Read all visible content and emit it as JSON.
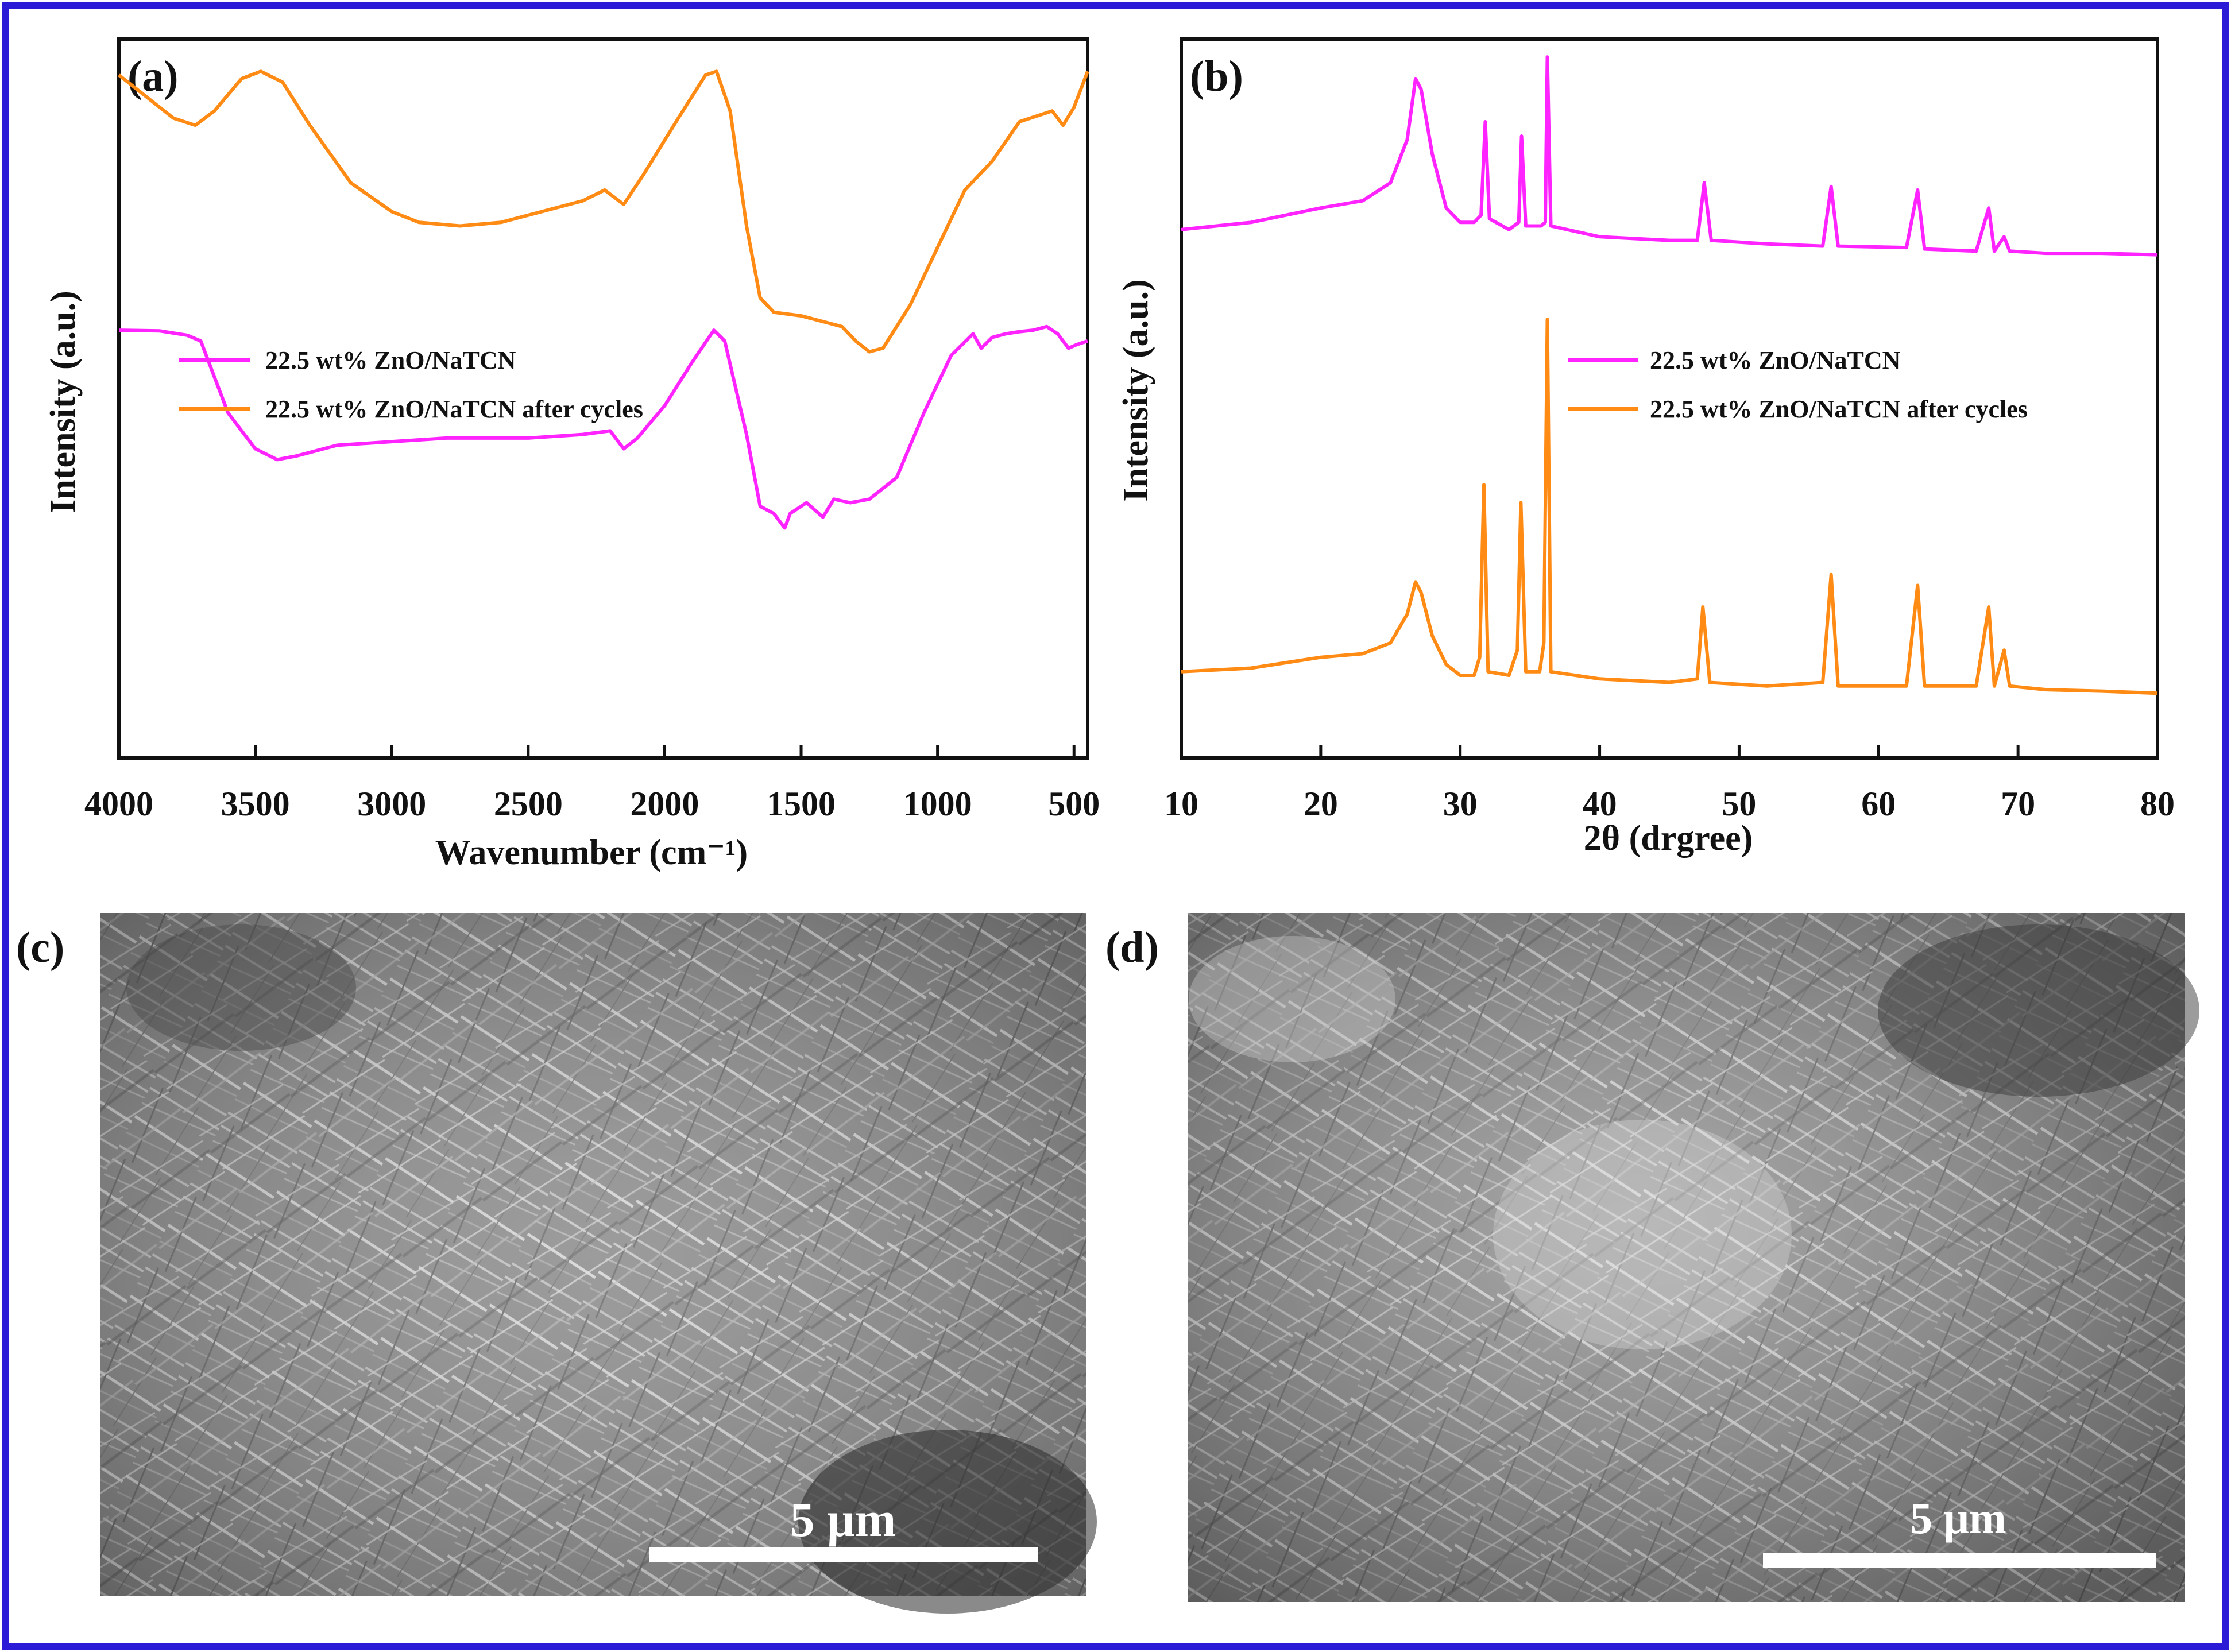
{
  "colors": {
    "frame": "#2b1bd6",
    "fresh": "#ff24ff",
    "cycled": "#ff8a14",
    "axis": "#111111"
  },
  "panels": {
    "a": {
      "label": "(a)"
    },
    "b": {
      "label": "(b)"
    },
    "c": {
      "label": "(c)",
      "scale_bar": "5 μm",
      "description_icon": "sem-micrograph-needles"
    },
    "d": {
      "label": "(d)",
      "scale_bar": "5 μm",
      "description_icon": "sem-micrograph-needles"
    }
  },
  "chart_data": [
    {
      "id": "a",
      "type": "line",
      "xlabel": "Wavenumber (cm⁻¹)",
      "ylabel": "Intensity (a.u.)",
      "xlim": [
        4000,
        450
      ],
      "x_reversed": true,
      "xticks": [
        4000,
        3500,
        3000,
        2500,
        2000,
        1500,
        1000,
        500
      ],
      "yticks_shown": false,
      "legend_position": "center-left",
      "series": [
        {
          "name": "22.5 wt% ZnO/NaTCN",
          "color_key": "fresh",
          "points": [
            [
              4000,
              0.595
            ],
            [
              3850,
              0.594
            ],
            [
              3750,
              0.588
            ],
            [
              3700,
              0.58
            ],
            [
              3600,
              0.48
            ],
            [
              3500,
              0.43
            ],
            [
              3420,
              0.415
            ],
            [
              3350,
              0.42
            ],
            [
              3200,
              0.435
            ],
            [
              3000,
              0.44
            ],
            [
              2800,
              0.445
            ],
            [
              2500,
              0.445
            ],
            [
              2300,
              0.45
            ],
            [
              2200,
              0.455
            ],
            [
              2150,
              0.43
            ],
            [
              2100,
              0.445
            ],
            [
              2000,
              0.49
            ],
            [
              1900,
              0.55
            ],
            [
              1820,
              0.595
            ],
            [
              1780,
              0.58
            ],
            [
              1700,
              0.45
            ],
            [
              1650,
              0.35
            ],
            [
              1600,
              0.34
            ],
            [
              1560,
              0.32
            ],
            [
              1540,
              0.34
            ],
            [
              1480,
              0.355
            ],
            [
              1420,
              0.335
            ],
            [
              1380,
              0.36
            ],
            [
              1320,
              0.355
            ],
            [
              1250,
              0.36
            ],
            [
              1150,
              0.39
            ],
            [
              1050,
              0.48
            ],
            [
              950,
              0.56
            ],
            [
              870,
              0.59
            ],
            [
              840,
              0.57
            ],
            [
              800,
              0.585
            ],
            [
              750,
              0.59
            ],
            [
              700,
              0.593
            ],
            [
              650,
              0.595
            ],
            [
              600,
              0.6
            ],
            [
              560,
              0.59
            ],
            [
              520,
              0.57
            ],
            [
              490,
              0.575
            ],
            [
              450,
              0.58
            ]
          ]
        },
        {
          "name": "22.5 wt% ZnO/NaTCN after cycles",
          "color_key": "cycled",
          "points": [
            [
              4000,
              0.95
            ],
            [
              3900,
              0.92
            ],
            [
              3800,
              0.89
            ],
            [
              3720,
              0.88
            ],
            [
              3650,
              0.9
            ],
            [
              3550,
              0.945
            ],
            [
              3480,
              0.955
            ],
            [
              3400,
              0.94
            ],
            [
              3300,
              0.88
            ],
            [
              3150,
              0.8
            ],
            [
              3000,
              0.76
            ],
            [
              2900,
              0.745
            ],
            [
              2750,
              0.74
            ],
            [
              2600,
              0.745
            ],
            [
              2450,
              0.76
            ],
            [
              2300,
              0.775
            ],
            [
              2220,
              0.79
            ],
            [
              2150,
              0.77
            ],
            [
              2080,
              0.81
            ],
            [
              1950,
              0.89
            ],
            [
              1850,
              0.95
            ],
            [
              1810,
              0.955
            ],
            [
              1760,
              0.9
            ],
            [
              1700,
              0.74
            ],
            [
              1650,
              0.64
            ],
            [
              1600,
              0.62
            ],
            [
              1500,
              0.615
            ],
            [
              1400,
              0.605
            ],
            [
              1350,
              0.6
            ],
            [
              1300,
              0.58
            ],
            [
              1250,
              0.565
            ],
            [
              1200,
              0.57
            ],
            [
              1100,
              0.63
            ],
            [
              1000,
              0.71
            ],
            [
              900,
              0.79
            ],
            [
              850,
              0.81
            ],
            [
              800,
              0.83
            ],
            [
              700,
              0.885
            ],
            [
              620,
              0.895
            ],
            [
              580,
              0.9
            ],
            [
              540,
              0.88
            ],
            [
              500,
              0.905
            ],
            [
              450,
              0.955
            ]
          ]
        }
      ]
    },
    {
      "id": "b",
      "type": "line",
      "xlabel": "2θ (drgree)",
      "ylabel": "Intensity (a.u.)",
      "xlim": [
        10,
        80
      ],
      "xticks": [
        10,
        20,
        30,
        40,
        50,
        60,
        70,
        80
      ],
      "yticks_shown": false,
      "legend_position": "center-right",
      "series": [
        {
          "name": "22.5 wt% ZnO/NaTCN",
          "color_key": "fresh",
          "points": [
            [
              10,
              0.735
            ],
            [
              15,
              0.745
            ],
            [
              20,
              0.765
            ],
            [
              23,
              0.775
            ],
            [
              25,
              0.8
            ],
            [
              26.2,
              0.86
            ],
            [
              26.8,
              0.945
            ],
            [
              27.2,
              0.93
            ],
            [
              28,
              0.84
            ],
            [
              29,
              0.765
            ],
            [
              30,
              0.745
            ],
            [
              31,
              0.745
            ],
            [
              31.5,
              0.755
            ],
            [
              31.8,
              0.885
            ],
            [
              32.1,
              0.75
            ],
            [
              33.5,
              0.735
            ],
            [
              34.2,
              0.745
            ],
            [
              34.4,
              0.865
            ],
            [
              34.7,
              0.74
            ],
            [
              35.8,
              0.74
            ],
            [
              36.1,
              0.745
            ],
            [
              36.25,
              0.975
            ],
            [
              36.5,
              0.74
            ],
            [
              40,
              0.725
            ],
            [
              45,
              0.72
            ],
            [
              47,
              0.72
            ],
            [
              47.5,
              0.8
            ],
            [
              48,
              0.72
            ],
            [
              52,
              0.715
            ],
            [
              56,
              0.712
            ],
            [
              56.6,
              0.795
            ],
            [
              57.1,
              0.712
            ],
            [
              62,
              0.71
            ],
            [
              62.8,
              0.79
            ],
            [
              63.3,
              0.708
            ],
            [
              67,
              0.705
            ],
            [
              67.9,
              0.765
            ],
            [
              68.3,
              0.705
            ],
            [
              69,
              0.725
            ],
            [
              69.4,
              0.705
            ],
            [
              72,
              0.702
            ],
            [
              76,
              0.702
            ],
            [
              80,
              0.7
            ]
          ]
        },
        {
          "name": "22.5 wt% ZnO/NaTCN after cycles",
          "color_key": "cycled",
          "points": [
            [
              10,
              0.12
            ],
            [
              15,
              0.125
            ],
            [
              20,
              0.14
            ],
            [
              23,
              0.145
            ],
            [
              25,
              0.16
            ],
            [
              26.2,
              0.2
            ],
            [
              26.8,
              0.245
            ],
            [
              27.2,
              0.23
            ],
            [
              28,
              0.17
            ],
            [
              29,
              0.13
            ],
            [
              30,
              0.115
            ],
            [
              31,
              0.115
            ],
            [
              31.4,
              0.14
            ],
            [
              31.7,
              0.38
            ],
            [
              32.0,
              0.12
            ],
            [
              33.5,
              0.115
            ],
            [
              34.1,
              0.15
            ],
            [
              34.35,
              0.355
            ],
            [
              34.7,
              0.12
            ],
            [
              35.7,
              0.12
            ],
            [
              36.0,
              0.16
            ],
            [
              36.25,
              0.61
            ],
            [
              36.5,
              0.12
            ],
            [
              40,
              0.11
            ],
            [
              45,
              0.105
            ],
            [
              47,
              0.11
            ],
            [
              47.4,
              0.21
            ],
            [
              47.9,
              0.105
            ],
            [
              52,
              0.1
            ],
            [
              56,
              0.105
            ],
            [
              56.6,
              0.255
            ],
            [
              57.1,
              0.1
            ],
            [
              62,
              0.1
            ],
            [
              62.8,
              0.24
            ],
            [
              63.3,
              0.1
            ],
            [
              67,
              0.1
            ],
            [
              67.9,
              0.21
            ],
            [
              68.3,
              0.1
            ],
            [
              69,
              0.15
            ],
            [
              69.4,
              0.1
            ],
            [
              72,
              0.095
            ],
            [
              76,
              0.093
            ],
            [
              80,
              0.09
            ]
          ]
        }
      ]
    }
  ]
}
